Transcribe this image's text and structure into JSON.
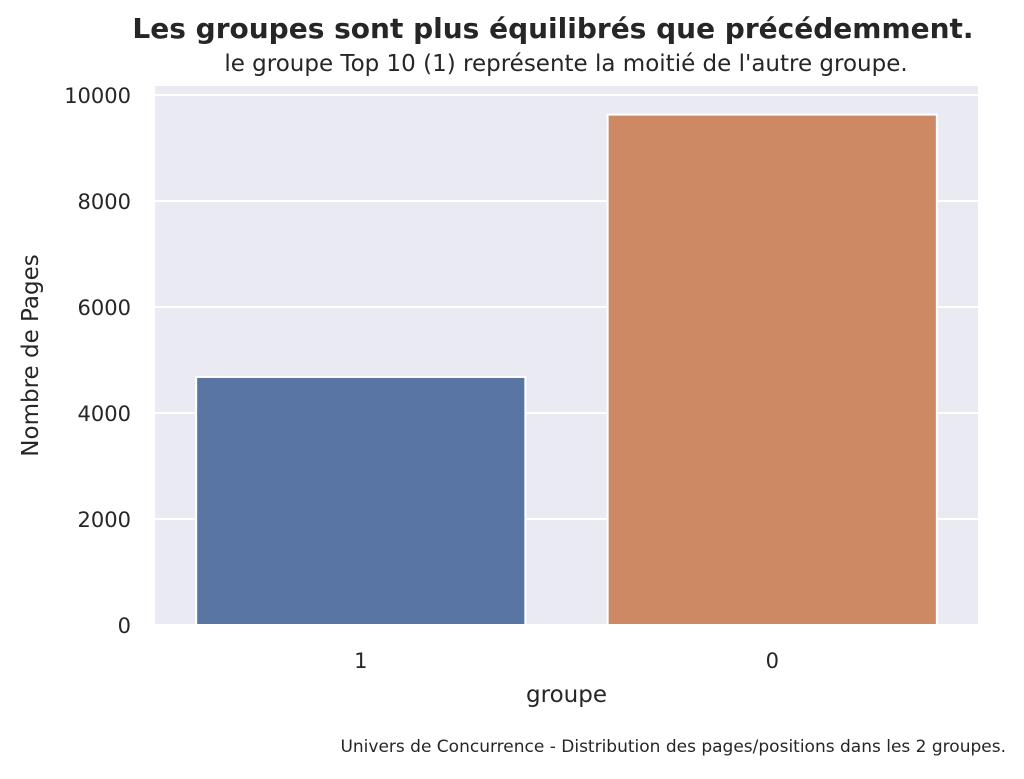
{
  "chart_data": {
    "type": "bar",
    "title": "Les groupes sont plus équilibrés que précédemment.",
    "subtitle": "le groupe Top 10 (1) représente la moitié de l'autre groupe.",
    "caption": "Univers de Concurrence - Distribution des pages/positions dans les 2 groupes.",
    "xlabel": "groupe",
    "ylabel": "Nombre de Pages",
    "categories": [
      "1",
      "0"
    ],
    "values": [
      4680,
      9630
    ],
    "colors": [
      "#5975a4",
      "#cc8963"
    ],
    "ylim": [
      0,
      10000
    ],
    "yticks": [
      0,
      2000,
      4000,
      6000,
      8000,
      10000
    ],
    "grid": true,
    "background": "#eaeaf2"
  }
}
